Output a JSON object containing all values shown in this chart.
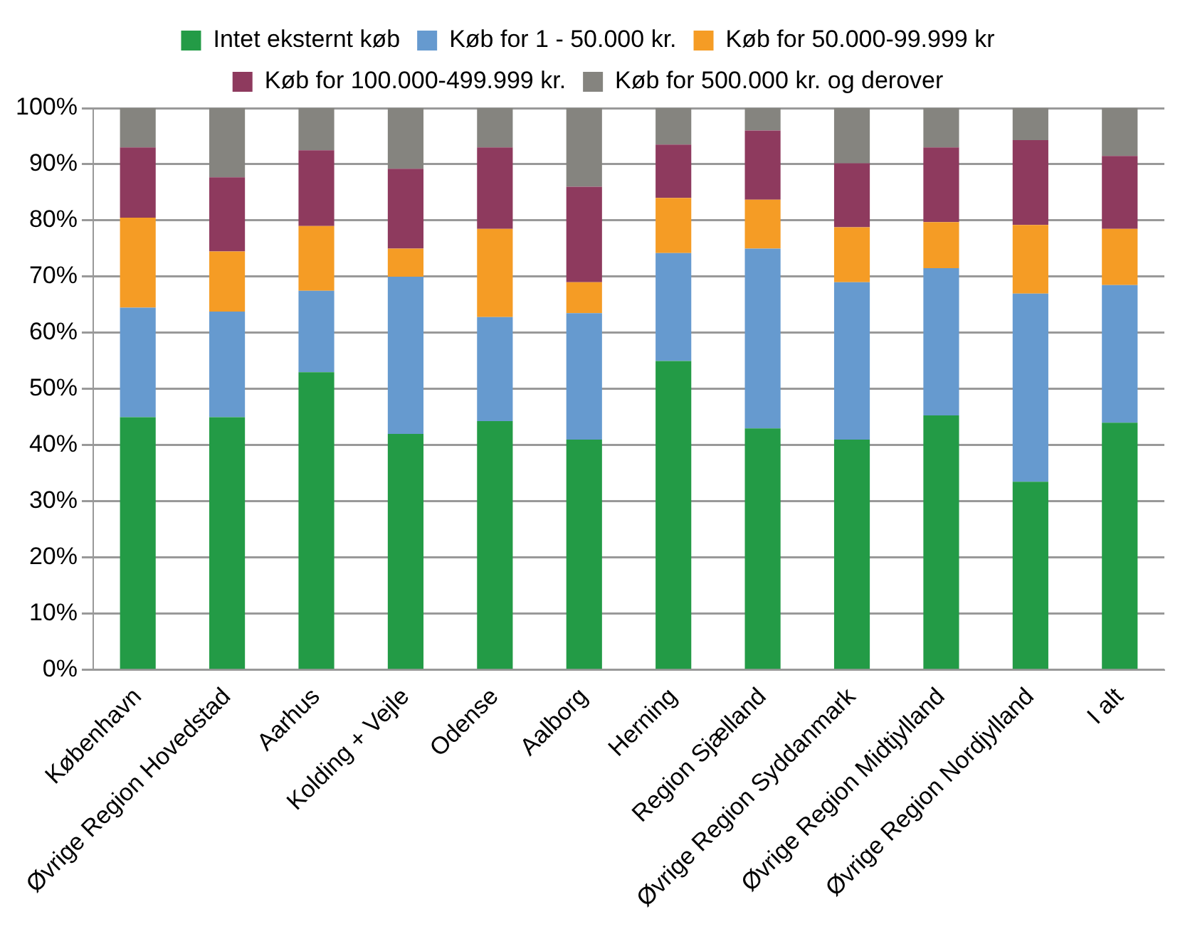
{
  "chart_data": {
    "type": "bar",
    "stacked": true,
    "categories": [
      "København",
      "Øvrige Region Hovedstad",
      "Aarhus",
      "Kolding + Vejle",
      "Odense",
      "Aalborg",
      "Herning",
      "Region Sjælland",
      "Øvrige Region Syddanmark",
      "Øvrige Region Midtjylland",
      "Øvrige Region Nordjylland",
      "I alt"
    ],
    "series": [
      {
        "name": "Intet eksternt køb",
        "color": "#239b46",
        "values": [
          45,
          45,
          53,
          42,
          44.3,
          41,
          55,
          43,
          41,
          45.3,
          33.5,
          44
        ]
      },
      {
        "name": "Køb for 1 - 50.000 kr.",
        "color": "#669acf",
        "values": [
          19.5,
          18.8,
          14.5,
          28,
          18.5,
          22.5,
          19.2,
          32,
          28,
          26.2,
          33.5,
          24.5
        ]
      },
      {
        "name": "Køb for 50.000-99.999 kr",
        "color": "#f59c25",
        "values": [
          16,
          10.7,
          11.5,
          5,
          15.7,
          5.5,
          9.8,
          8.7,
          9.8,
          8.2,
          12.2,
          10
        ]
      },
      {
        "name": "Køb for 100.000-499.999 kr.",
        "color": "#8e3a5e",
        "values": [
          12.5,
          13.2,
          13.5,
          14.2,
          14.5,
          17,
          9.5,
          12.3,
          11.4,
          13.3,
          15.1,
          13
        ]
      },
      {
        "name": "Køb for 500.000 kr. og derover",
        "color": "#85847f",
        "values": [
          7,
          12.3,
          7.5,
          10.8,
          7,
          14,
          6.5,
          4,
          9.8,
          7,
          5.7,
          8.5
        ]
      }
    ],
    "ylim": [
      0,
      100
    ],
    "yticks": [
      {
        "value": 0,
        "label": "0%"
      },
      {
        "value": 10,
        "label": "10%"
      },
      {
        "value": 20,
        "label": "20%"
      },
      {
        "value": 30,
        "label": "30%"
      },
      {
        "value": 40,
        "label": "40%"
      },
      {
        "value": 50,
        "label": "50%"
      },
      {
        "value": 60,
        "label": "60%"
      },
      {
        "value": 70,
        "label": "70%"
      },
      {
        "value": 80,
        "label": "80%"
      },
      {
        "value": 90,
        "label": "90%"
      },
      {
        "value": 100,
        "label": "100%"
      }
    ],
    "grid": "y",
    "legend": "top"
  }
}
